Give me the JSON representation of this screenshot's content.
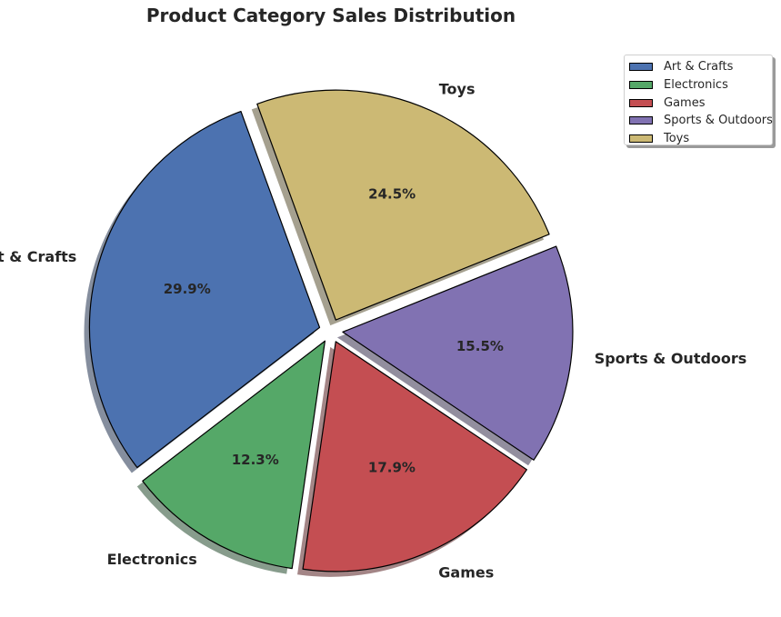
{
  "chart_data": {
    "type": "pie",
    "title": "Product Category Sales Distribution",
    "categories": [
      "Art & Crafts",
      "Electronics",
      "Games",
      "Sports & Outdoors",
      "Toys"
    ],
    "values": [
      29.9,
      12.3,
      17.9,
      15.5,
      24.5
    ],
    "value_labels": [
      "29.9%",
      "12.3%",
      "17.9%",
      "15.5%",
      "24.5%"
    ],
    "colors": [
      "#4c72b0",
      "#55a868",
      "#c44e52",
      "#8172b2",
      "#ccb974"
    ],
    "start_angle_deg": 110,
    "exploded": true,
    "shadow": true,
    "legend": {
      "placement": "upper-right outside",
      "entries": [
        "Art & Crafts",
        "Electronics",
        "Games",
        "Sports & Outdoors",
        "Toys"
      ]
    }
  }
}
